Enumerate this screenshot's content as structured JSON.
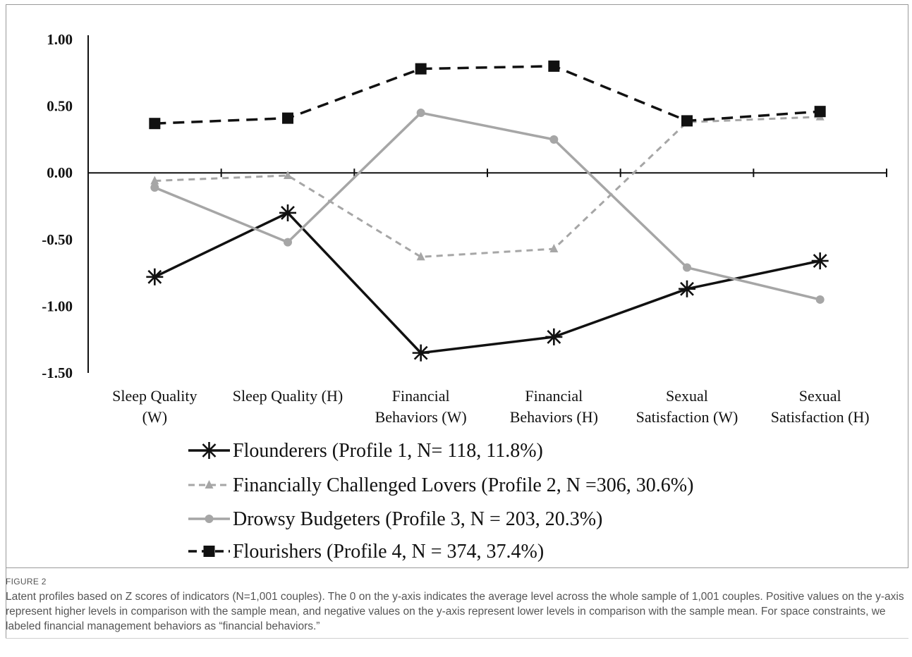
{
  "chart_data": {
    "type": "line",
    "categories": [
      [
        "Sleep Quality",
        "(W)"
      ],
      [
        "Sleep Quality (H)"
      ],
      [
        "Financial",
        "Behaviors (W)"
      ],
      [
        "Financial",
        "Behaviors (H)"
      ],
      [
        "Sexual",
        "Satisfaction (W)"
      ],
      [
        "Sexual",
        "Satisfaction (H)"
      ]
    ],
    "yticks": [
      "1.00",
      "0.50",
      "0.00",
      "-0.50",
      "-1.00",
      "-1.50"
    ],
    "ylim": [
      -1.5,
      1.0
    ],
    "series": [
      {
        "name": "Flounderers (Profile 1, N= 118, 11.8%)",
        "values": [
          -0.78,
          -0.3,
          -1.35,
          -1.23,
          -0.87,
          -0.66
        ],
        "color": "#111111",
        "dash": "",
        "marker": "star",
        "width": 3.5
      },
      {
        "name": "Financially Challenged Lovers (Profile 2, N =306, 30.6%)",
        "values": [
          -0.06,
          -0.02,
          -0.63,
          -0.57,
          0.38,
          0.42
        ],
        "color": "#a6a6a6",
        "dash": "9,7",
        "marker": "triangle",
        "width": 3
      },
      {
        "name": "Drowsy Budgeters (Profile 3, N = 203, 20.3%)",
        "values": [
          -0.11,
          -0.52,
          0.45,
          0.25,
          -0.71,
          -0.95
        ],
        "color": "#a6a6a6",
        "dash": "",
        "marker": "circle",
        "width": 3.5
      },
      {
        "name": "Flourishers (Profile 4, N = 374, 37.4%)",
        "values": [
          0.37,
          0.41,
          0.78,
          0.8,
          0.39,
          0.46
        ],
        "color": "#111111",
        "dash": "16,10",
        "marker": "square",
        "width": 3.5
      }
    ]
  },
  "caption": {
    "label": "FIGURE 2",
    "text": "Latent profiles based on Z scores of indicators (N=1,001 couples). The 0 on the y-axis indicates the average level across the whole sample of 1,001 couples. Positive values on the y-axis represent higher levels in comparison with the sample mean, and negative values on the y-axis represent lower levels in comparison with the sample mean. For space constraints, we labeled financial management behaviors as “financial behaviors.”"
  }
}
